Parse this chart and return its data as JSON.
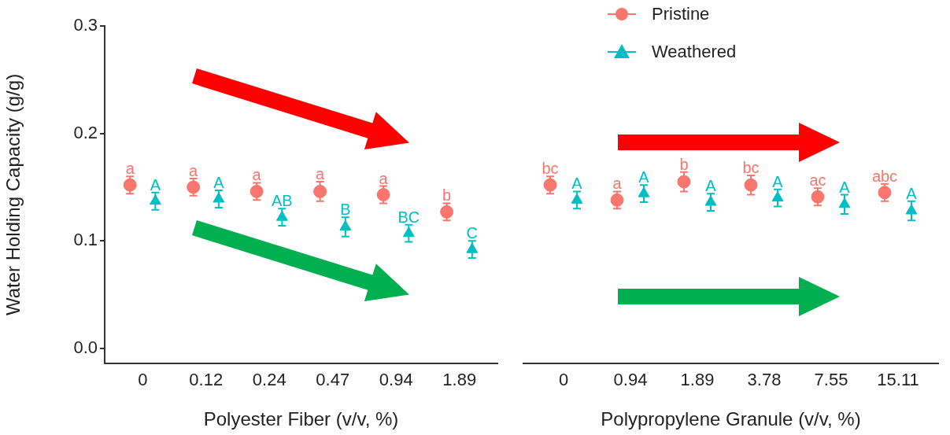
{
  "chart_data": [
    {
      "type": "scatter",
      "ylabel": "Water Holding Capacity (g/g)",
      "xlabel": "Polyester Fiber (v/v, %)",
      "categories": [
        "0",
        "0.12",
        "0.24",
        "0.47",
        "0.94",
        "1.89"
      ],
      "ylim": [
        -0.014,
        0.3
      ],
      "yticks": [
        {
          "value": 0,
          "label": "0.0"
        },
        0.1,
        0.2,
        0.3
      ],
      "grid": false,
      "legend": false,
      "series": [
        {
          "color": "#f8766d",
          "marker": "circle",
          "values": [
            0.152,
            0.15,
            0.146,
            0.146,
            0.143,
            0.127
          ],
          "errors": [
            0.008,
            0.008,
            0.008,
            0.009,
            0.008,
            0.008
          ]
        },
        {
          "color": "#00bfc4",
          "marker": "triangle",
          "values": [
            0.137,
            0.139,
            0.122,
            0.113,
            0.107,
            0.092
          ],
          "errors": [
            0.008,
            0.008,
            0.008,
            0.009,
            0.008,
            0.008
          ]
        }
      ],
      "annotations": [
        "a",
        "a",
        "a",
        "a",
        "a",
        "b",
        "A",
        "A",
        "AB",
        "B",
        "BC",
        "C"
      ]
    },
    {
      "type": "scatter",
      "xlabel": "Polypropylene Granule (v/v, %)",
      "categories": [
        "0",
        "0.94",
        "1.89",
        "3.78",
        "7.55",
        "15.11"
      ],
      "ylim": [
        -0.014,
        0.3
      ],
      "tick_labels": "x",
      "grid": false,
      "legend": "top left",
      "series": [
        {
          "name": "Pristine",
          "color": "#f8766d",
          "marker": "circle",
          "values": [
            0.152,
            0.138,
            0.155,
            0.152,
            0.141,
            0.145
          ],
          "errors": [
            0.008,
            0.008,
            0.009,
            0.009,
            0.008,
            0.008
          ]
        },
        {
          "name": "Weathered",
          "color": "#00bfc4",
          "marker": "triangle",
          "values": [
            0.138,
            0.144,
            0.136,
            0.14,
            0.134,
            0.128
          ],
          "errors": [
            0.008,
            0.008,
            0.008,
            0.008,
            0.009,
            0.009
          ]
        }
      ],
      "annotations": [
        "bc",
        "a",
        "b",
        "bc",
        "ac",
        "abc",
        "A",
        "A",
        "A",
        "A",
        "A",
        "A"
      ]
    }
  ]
}
